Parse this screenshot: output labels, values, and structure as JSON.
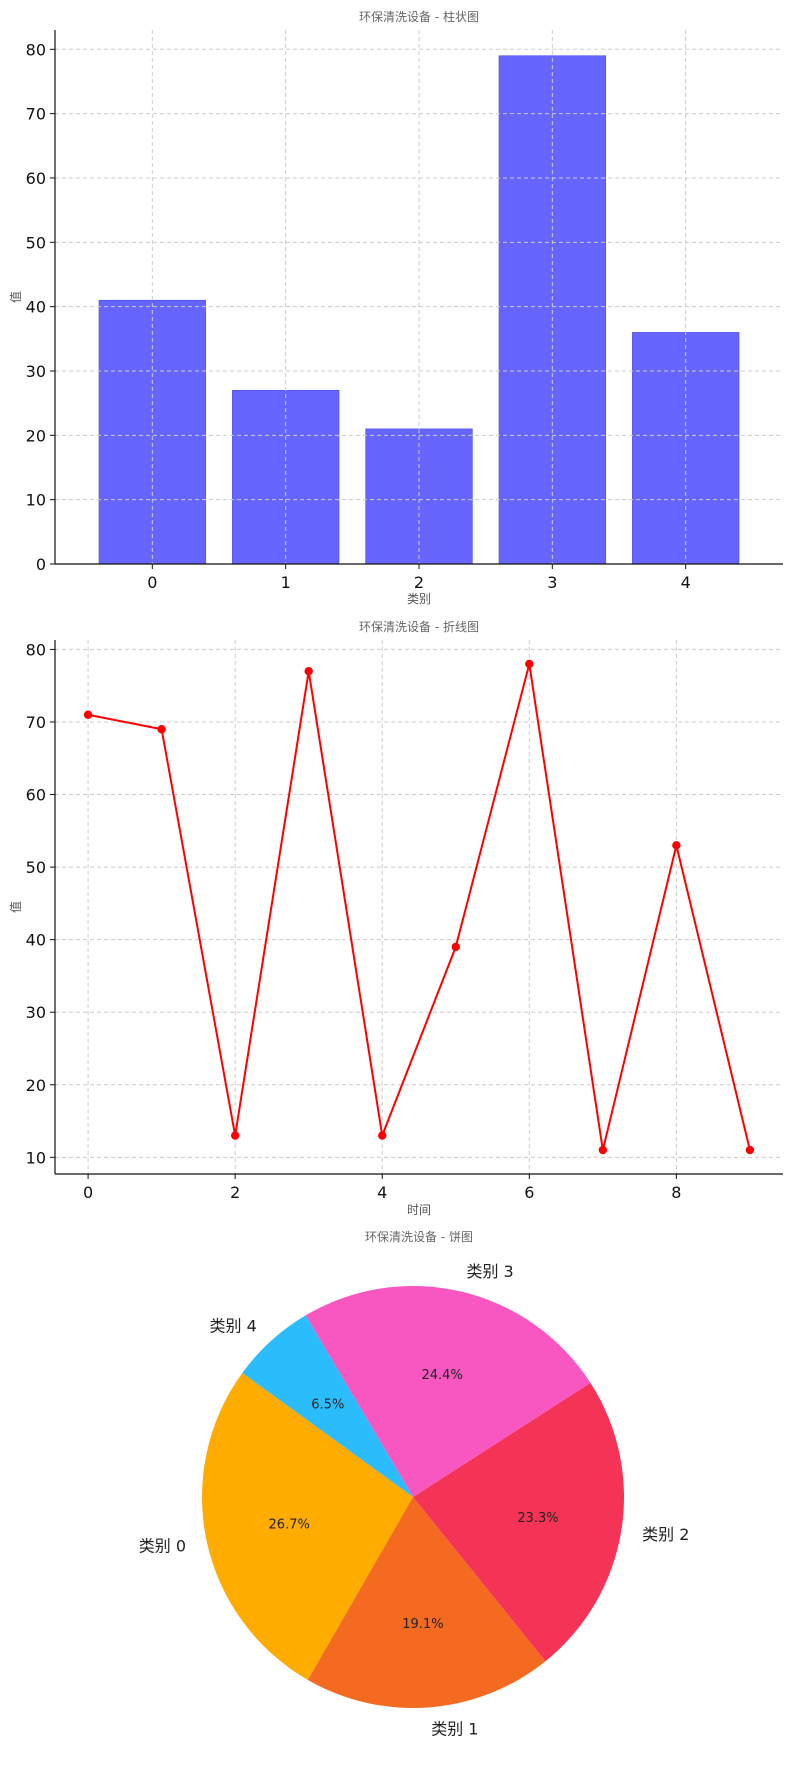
{
  "chart_data": [
    {
      "type": "bar",
      "title": "环保清洗设备 - 柱状图",
      "xlabel": "类别",
      "ylabel": "值",
      "categories": [
        "0",
        "1",
        "2",
        "3",
        "4"
      ],
      "values": [
        41,
        27,
        21,
        79,
        36
      ],
      "ylim": [
        0,
        83
      ],
      "yticks": [
        0,
        10,
        20,
        30,
        40,
        50,
        60,
        70,
        80
      ],
      "color": "#6666ff",
      "grid": true
    },
    {
      "type": "line",
      "title": "环保清洗设备 - 折线图",
      "xlabel": "时间",
      "ylabel": "值",
      "x": [
        0,
        1,
        2,
        3,
        4,
        5,
        6,
        7,
        8,
        9
      ],
      "values": [
        71,
        69,
        13,
        77,
        13,
        39,
        78,
        11,
        53,
        11
      ],
      "xlim": [
        -0.45,
        9.45
      ],
      "ylim": [
        7.7,
        81.3
      ],
      "xticks": [
        0,
        2,
        4,
        6,
        8
      ],
      "yticks": [
        10,
        20,
        30,
        40,
        50,
        60,
        70,
        80
      ],
      "color": "#ff0000",
      "grid": true
    },
    {
      "type": "pie",
      "title": "环保清洗设备 - 饼图",
      "labels": [
        "类别 0",
        "类别 1",
        "类别 2",
        "类别 3",
        "类别 4"
      ],
      "values": [
        26.7,
        19.1,
        23.3,
        24.4,
        6.5
      ],
      "percent_labels": [
        "26.7%",
        "19.1%",
        "23.3%",
        "24.4%",
        "6.5%"
      ],
      "colors": [
        "#ffab00",
        "#f46a21",
        "#f43357",
        "#f857c1",
        "#2bbdfb"
      ],
      "start_angle": 144,
      "direction": "counterclockwise"
    }
  ]
}
